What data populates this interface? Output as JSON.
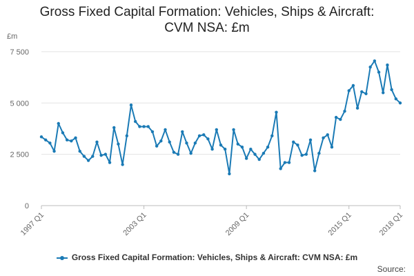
{
  "chart_data": {
    "type": "line",
    "title_lines": [
      "Gross Fixed Capital Formation: Vehicles, Ships & Aircraft:",
      "CVM NSA: £m"
    ],
    "ylabel": "£m",
    "ylim": [
      0,
      8000
    ],
    "yticks": [
      {
        "value": 0,
        "label": "0"
      },
      {
        "value": 2500,
        "label": "2 500"
      },
      {
        "value": 5000,
        "label": "5 000"
      },
      {
        "value": 7500,
        "label": "7 500"
      }
    ],
    "xticks": [
      {
        "index": 0,
        "label": "1997 Q1"
      },
      {
        "index": 24,
        "label": "2003 Q1"
      },
      {
        "index": 48,
        "label": "2009 Q1"
      },
      {
        "index": 72,
        "label": "2015 Q1"
      },
      {
        "index": 84,
        "label": "2018 Q1"
      }
    ],
    "series": [
      {
        "name": "Gross Fixed Capital Formation: Vehicles, Ships & Aircraft: CVM NSA: £m",
        "color": "#1a7ab5",
        "values": [
          3350,
          3200,
          3050,
          2650,
          4000,
          3550,
          3200,
          3150,
          3300,
          2650,
          2400,
          2200,
          2400,
          3100,
          2450,
          2500,
          2100,
          3800,
          3000,
          2000,
          3400,
          4900,
          4100,
          3850,
          3850,
          3850,
          3600,
          2900,
          3150,
          3700,
          3100,
          2600,
          2500,
          3600,
          3050,
          2550,
          3050,
          3400,
          3450,
          3250,
          2750,
          3700,
          2950,
          2750,
          1550,
          3700,
          3000,
          2850,
          2300,
          2750,
          2500,
          2250,
          2550,
          2850,
          3400,
          4550,
          1800,
          2100,
          2100,
          3100,
          2950,
          2450,
          2500,
          3200,
          1700,
          2550,
          3300,
          3450,
          2850,
          4300,
          4200,
          4600,
          5600,
          5850,
          4750,
          5550,
          5450,
          6750,
          7050,
          6500,
          5500,
          6850,
          5650,
          5200,
          5000
        ]
      }
    ]
  },
  "legend": {
    "label": "Gross Fixed Capital Formation: Vehicles, Ships & Aircraft: CVM NSA: £m"
  },
  "source": {
    "label": "Source:"
  }
}
